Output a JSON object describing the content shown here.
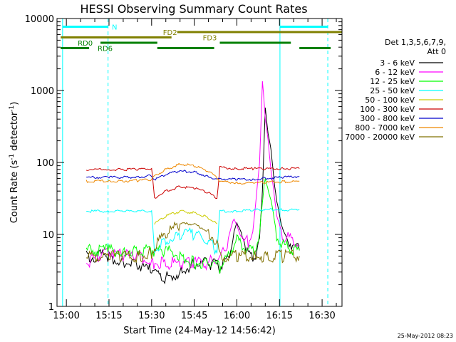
{
  "chart_data": {
    "type": "line",
    "title": "HESSI Observing Summary Count Rates",
    "xlabel": "Start Time (24-May-12 14:56:42)",
    "ylabel_main": "Count Rate (s",
    "ylabel_sup1": "-1",
    "ylabel_mid": " detector",
    "ylabel_sup2": "-1",
    "ylabel_end": ")",
    "yscale": "log",
    "xlim": [
      "14:56:42",
      "16:37:00"
    ],
    "ylim": [
      1,
      10000
    ],
    "x_ticks": [
      "15:00",
      "15:15",
      "15:30",
      "15:45",
      "16:00",
      "16:15",
      "16:30"
    ],
    "y_ticks": [
      "1",
      "10",
      "100",
      "1000",
      "10000"
    ],
    "legend_title": "Det 1,3,5,6,7,9,",
    "legend_subtitle": "Att 0",
    "legend_placement": "right",
    "timestamp": "25-May-2012 08:23",
    "night_edges": [
      "14:58:40",
      "15:14:40",
      "16:15:10",
      "16:32:00"
    ],
    "obs_bars": [
      {
        "label": "N",
        "color": "#00ffff",
        "level": 1,
        "segments": [
          [
            "14:58:40",
            "15:14:40"
          ],
          [
            "16:15:10",
            "16:32:00"
          ]
        ],
        "label_at": "15:16:00"
      },
      {
        "label": "FD2",
        "color": "#808000",
        "level": 2,
        "segments": [
          [
            "15:39:00",
            "16:37:00"
          ]
        ],
        "label_at": "15:34:00"
      },
      {
        "label": "FD3",
        "color": "#808000",
        "level": 3,
        "segments": [
          [
            "14:58:00",
            "15:37:00"
          ]
        ],
        "label_at": "15:48:00"
      },
      {
        "label": "RD0",
        "color": "#008000",
        "level": 4,
        "segments": [
          [
            "15:12:00",
            "15:32:00"
          ],
          [
            "15:54:00",
            "16:19:00"
          ]
        ],
        "label_at": "15:04:00"
      },
      {
        "label": "RD6",
        "color": "#008000",
        "level": 5,
        "segments": [
          [
            "14:58:00",
            "15:08:00"
          ],
          [
            "15:32:00",
            "15:52:00"
          ],
          [
            "16:22:00",
            "16:33:00"
          ]
        ],
        "label_at": "15:11:00"
      }
    ],
    "series": [
      {
        "name": "3 - 6 keV",
        "color": "#000000",
        "x": [
          "15:07:00",
          "15:15:00",
          "15:20:00",
          "15:25:00",
          "15:30:00",
          "15:35:00",
          "15:40:00",
          "15:45:00",
          "15:50:00",
          "15:54:00",
          "15:57:00",
          "15:59:00",
          "16:00:00",
          "16:02:00",
          "16:04:00",
          "16:06:00",
          "16:08:00",
          "16:09:00",
          "16:10:00",
          "16:11:00",
          "16:12:00",
          "16:13:00",
          "16:14:00",
          "16:16:00",
          "16:18:00",
          "16:20:00",
          "16:22:00"
        ],
        "values": [
          5,
          5,
          4,
          4,
          3,
          2.5,
          3,
          4,
          4,
          3.5,
          5,
          10,
          14,
          10,
          5,
          5,
          8,
          40,
          600,
          250,
          150,
          60,
          30,
          12,
          8,
          7,
          6
        ]
      },
      {
        "name": "6 - 12 keV",
        "color": "#ff00ff",
        "x": [
          "15:07:00",
          "15:12:00",
          "15:15:00",
          "15:20:00",
          "15:25:00",
          "15:30:00",
          "15:35:00",
          "15:40:00",
          "15:45:00",
          "15:50:00",
          "15:54:00",
          "15:57:00",
          "15:59:00",
          "16:00:00",
          "16:02:00",
          "16:04:00",
          "16:06:00",
          "16:08:00",
          "16:09:00",
          "16:10:00",
          "16:11:00",
          "16:12:00",
          "16:13:00",
          "16:14:00",
          "16:16:00",
          "16:18:00",
          "16:20:00",
          "16:22:00"
        ],
        "values": [
          4,
          5,
          6,
          5,
          5,
          4,
          4,
          4,
          4,
          4,
          5,
          8,
          16,
          14,
          8,
          8,
          15,
          100,
          1400,
          400,
          200,
          80,
          40,
          18,
          10,
          9,
          8,
          7
        ]
      },
      {
        "name": "12 - 25 keV",
        "color": "#00ff00",
        "x": [
          "15:07:00",
          "15:15:00",
          "15:20:00",
          "15:25:00",
          "15:30:00",
          "15:35:00",
          "15:40:00",
          "15:45:00",
          "15:50:00",
          "15:54:00",
          "15:57:00",
          "16:00:00",
          "16:03:00",
          "16:06:00",
          "16:08:00",
          "16:10:00",
          "16:12:00",
          "16:14:00",
          "16:16:00",
          "16:18:00",
          "16:20:00",
          "16:22:00"
        ],
        "values": [
          6,
          6,
          6,
          6,
          6,
          6,
          5,
          4,
          4,
          3.5,
          5,
          9,
          6,
          6,
          10,
          60,
          30,
          10,
          7,
          7,
          6,
          6
        ]
      },
      {
        "name": "25 - 50 keV",
        "color": "#00ffff",
        "x": [
          "15:07:00",
          "15:15:00",
          "15:20:00",
          "15:25:00",
          "15:30:00",
          "15:31:00",
          "15:35:00",
          "15:40:00",
          "15:45:00",
          "15:50:00",
          "15:53:00",
          "15:54:00",
          "16:00:00",
          "16:06:00",
          "16:10:00",
          "16:16:00",
          "16:22:00"
        ],
        "values": [
          21,
          21,
          21,
          21,
          21,
          6,
          8,
          10,
          10,
          8,
          6,
          21,
          21,
          22,
          22,
          22,
          22
        ]
      },
      {
        "name": "50 - 100 keV",
        "color": "#cccc00",
        "x": [
          "15:31:00",
          "15:35:00",
          "15:40:00",
          "15:45:00",
          "15:50:00",
          "15:53:00"
        ],
        "values": [
          14,
          18,
          21,
          20,
          17,
          14
        ]
      },
      {
        "name": "100 - 300 keV",
        "color": "#cc0000",
        "x": [
          "15:07:00",
          "15:15:00",
          "15:20:00",
          "15:25:00",
          "15:30:00",
          "15:31:00",
          "15:35:00",
          "15:40:00",
          "15:45:00",
          "15:50:00",
          "15:53:00",
          "15:54:00",
          "16:00:00",
          "16:06:00",
          "16:10:00",
          "16:16:00",
          "16:22:00"
        ],
        "values": [
          80,
          80,
          80,
          80,
          82,
          32,
          40,
          46,
          44,
          38,
          32,
          85,
          82,
          82,
          82,
          82,
          82
        ]
      },
      {
        "name": "300 - 800 keV",
        "color": "#0000cc",
        "x": [
          "15:07:00",
          "15:15:00",
          "15:20:00",
          "15:25:00",
          "15:30:00",
          "15:31:00",
          "15:35:00",
          "15:40:00",
          "15:45:00",
          "15:50:00",
          "15:53:00",
          "15:54:00",
          "16:00:00",
          "16:06:00",
          "16:10:00",
          "16:16:00",
          "16:22:00"
        ],
        "values": [
          62,
          62,
          62,
          63,
          65,
          58,
          68,
          76,
          74,
          64,
          58,
          60,
          58,
          58,
          60,
          62,
          64
        ]
      },
      {
        "name": "800 - 7000 keV",
        "color": "#ee8800",
        "x": [
          "15:07:00",
          "15:15:00",
          "15:20:00",
          "15:25:00",
          "15:30:00",
          "15:31:00",
          "15:35:00",
          "15:40:00",
          "15:45:00",
          "15:50:00",
          "15:53:00",
          "15:54:00",
          "16:00:00",
          "16:06:00",
          "16:10:00",
          "16:16:00",
          "16:22:00"
        ],
        "values": [
          55,
          55,
          55,
          56,
          58,
          65,
          80,
          95,
          90,
          75,
          62,
          55,
          52,
          52,
          53,
          54,
          55
        ]
      },
      {
        "name": "7000 - 20000 keV",
        "color": "#807000",
        "x": [
          "15:07:00",
          "15:15:00",
          "15:20:00",
          "15:25:00",
          "15:30:00",
          "15:31:00",
          "15:35:00",
          "15:40:00",
          "15:45:00",
          "15:50:00",
          "15:53:00",
          "15:54:00",
          "16:00:00",
          "16:06:00",
          "16:10:00",
          "16:16:00",
          "16:22:00"
        ],
        "values": [
          5,
          5,
          5,
          5,
          5.5,
          7,
          10,
          14,
          14,
          11,
          8,
          5,
          5,
          5,
          5,
          5,
          5
        ]
      }
    ]
  }
}
